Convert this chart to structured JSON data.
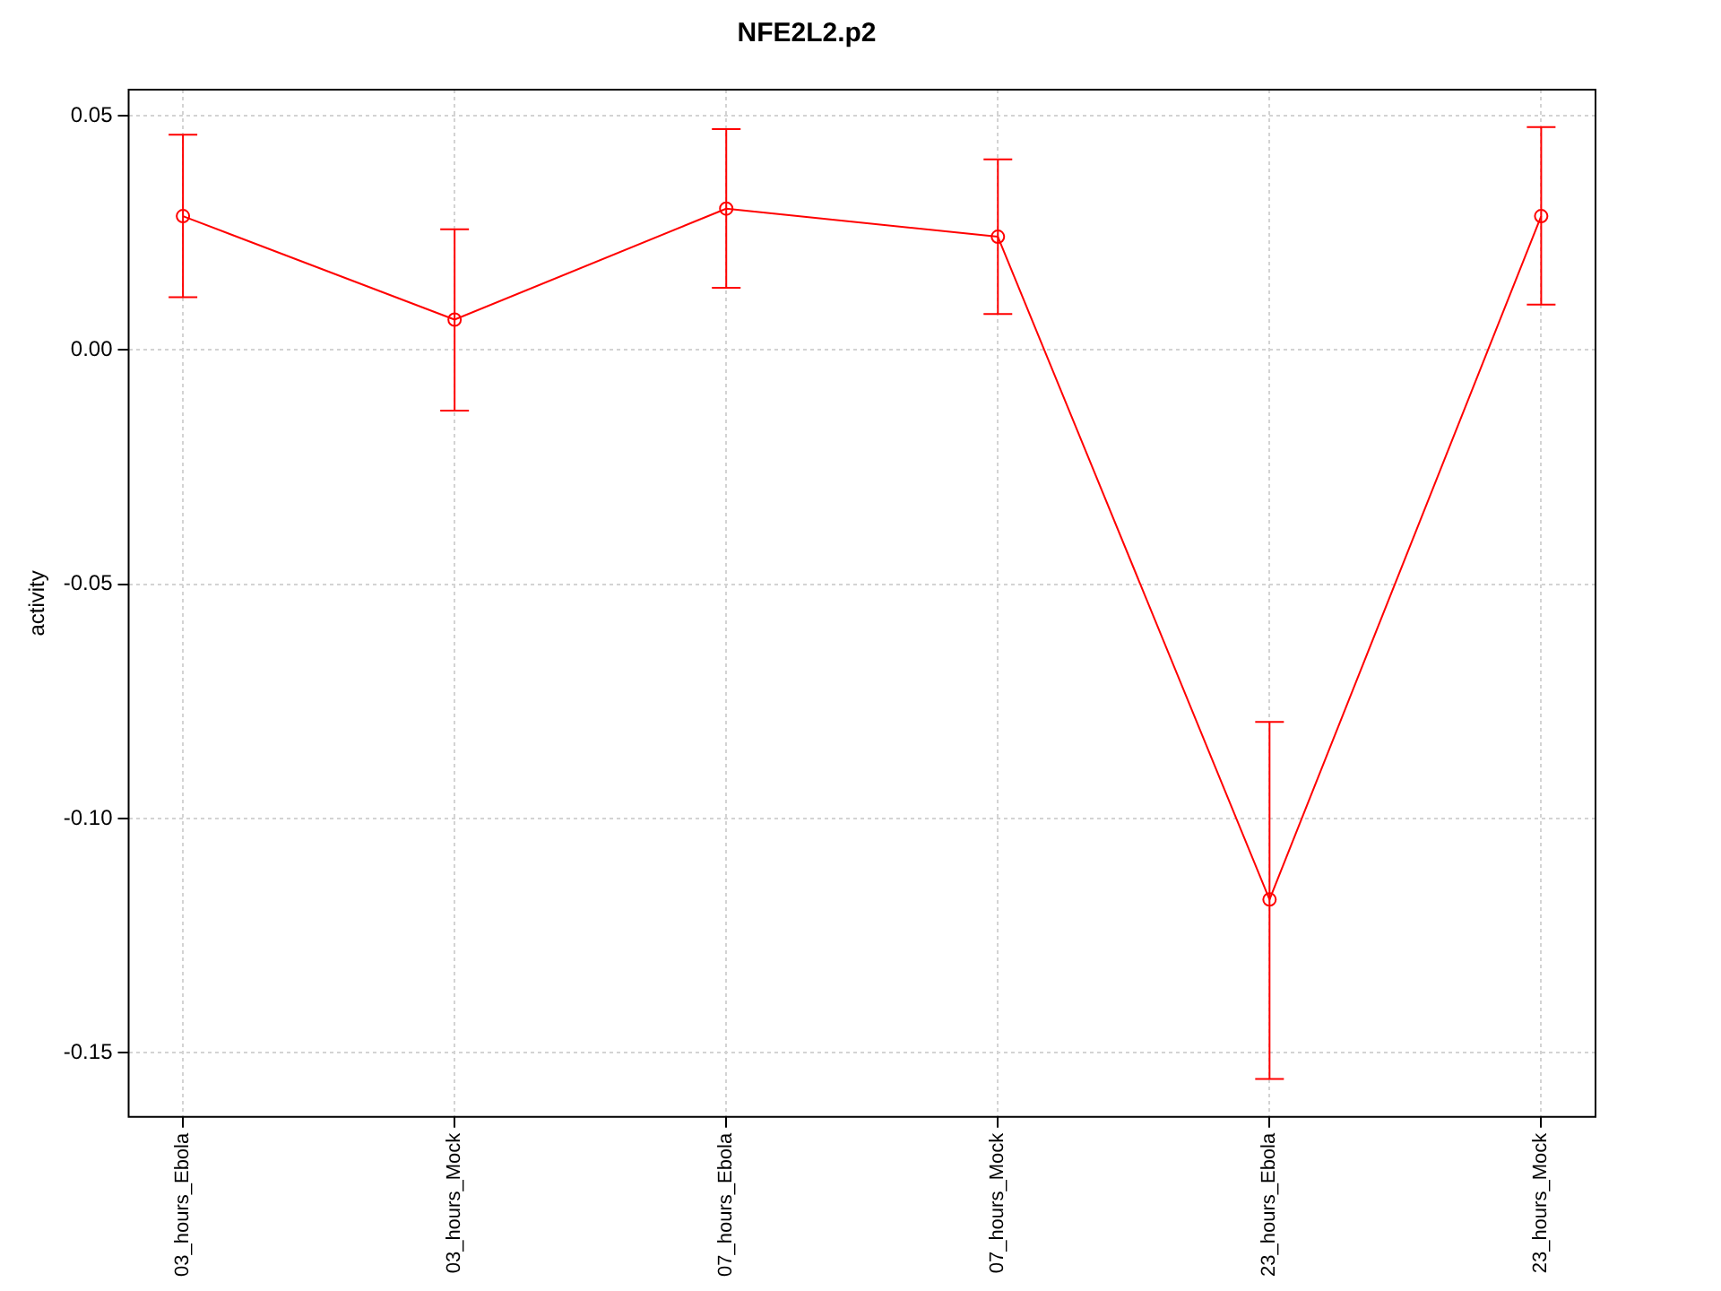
{
  "chart_data": {
    "type": "line",
    "title": "NFE2L2.p2",
    "ylabel": "activity",
    "categories": [
      "03_hours_Ebola",
      "03_hours_Mock",
      "07_hours_Ebola",
      "07_hours_Mock",
      "23_hours_Ebola",
      "23_hours_Mock"
    ],
    "series": [
      {
        "color": "#ff0000",
        "values": [
          0.0286,
          0.0065,
          0.0302,
          0.0242,
          -0.1173,
          0.0286
        ],
        "errors": [
          [
            0.0113,
            0.046
          ],
          [
            -0.0129,
            0.0258
          ],
          [
            0.0133,
            0.0472
          ],
          [
            0.0077,
            0.0407
          ],
          [
            -0.1556,
            -0.0794
          ],
          [
            0.0097,
            0.0476
          ]
        ]
      }
    ],
    "ylim": [
      -0.1637,
      0.0556
    ],
    "yticks": [
      {
        "value": -0.15,
        "label": "-0.15"
      },
      {
        "value": -0.1,
        "label": "-0.10"
      },
      {
        "value": -0.05,
        "label": "-0.05"
      },
      {
        "value": 0,
        "label": "0.00"
      },
      {
        "value": 0.05,
        "label": "0.05"
      }
    ],
    "grid": true,
    "legend": false,
    "marker": "circle",
    "line_style": "solid"
  }
}
